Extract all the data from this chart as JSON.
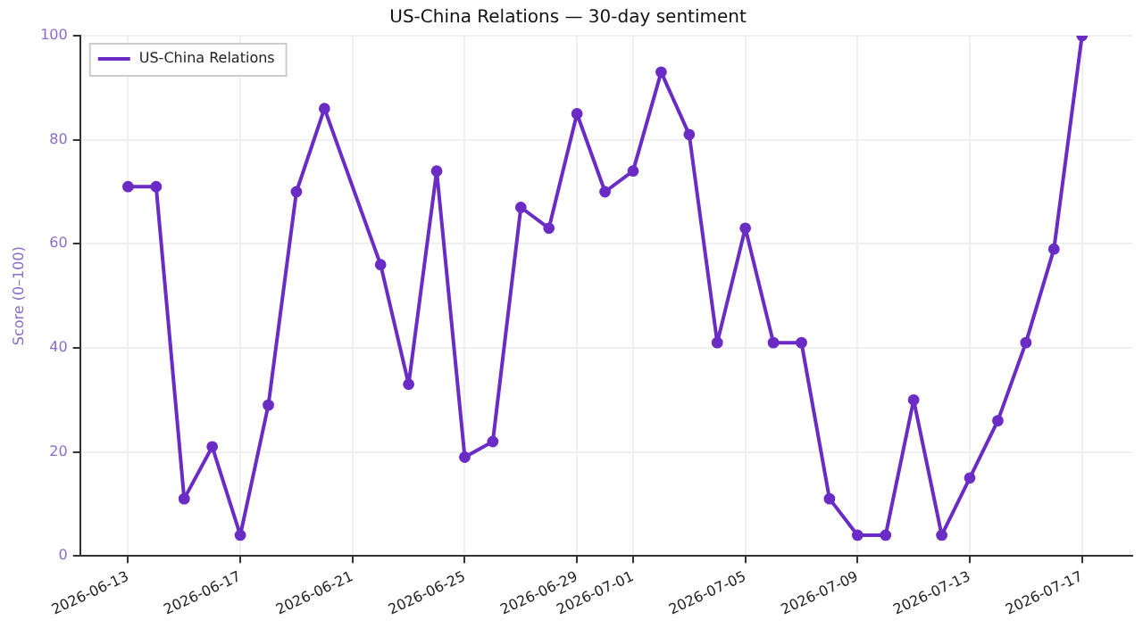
{
  "chart_data": {
    "type": "line",
    "title": "US-China Relations — 30-day sentiment",
    "ylabel": "Score (0–100)",
    "x": [
      "2026-06-13",
      "2026-06-14",
      "2026-06-15",
      "2026-06-16",
      "2026-06-17",
      "2026-06-18",
      "2026-06-19",
      "2026-06-20",
      "2026-06-22",
      "2026-06-23",
      "2026-06-24",
      "2026-06-25",
      "2026-06-26",
      "2026-06-27",
      "2026-06-28",
      "2026-06-29",
      "2026-06-30",
      "2026-07-01",
      "2026-07-02",
      "2026-07-03",
      "2026-07-04",
      "2026-07-05",
      "2026-07-06",
      "2026-07-07",
      "2026-07-08",
      "2026-07-09",
      "2026-07-10",
      "2026-07-11",
      "2026-07-12",
      "2026-07-13",
      "2026-07-14",
      "2026-07-15",
      "2026-07-16",
      "2026-07-17"
    ],
    "series": [
      {
        "name": "US-China Relations",
        "color": "#6a2cc4",
        "values": [
          71,
          71,
          11,
          21,
          4,
          29,
          70,
          86,
          56,
          33,
          74,
          19,
          22,
          67,
          63,
          85,
          70,
          74,
          93,
          81,
          41,
          63,
          41,
          41,
          11,
          4,
          4,
          30,
          4,
          15,
          26,
          41,
          59,
          100
        ]
      }
    ],
    "xlim": [
      "2026-06-11T07:00",
      "2026-07-18T19:00"
    ],
    "xticks": [
      "2026-06-13",
      "2026-06-17",
      "2026-06-21",
      "2026-06-25",
      "2026-06-29",
      "2026-07-01",
      "2026-07-05",
      "2026-07-09",
      "2026-07-13",
      "2026-07-17"
    ],
    "ylim": [
      0,
      100
    ],
    "yticks": [
      0,
      20,
      40,
      60,
      80,
      100
    ],
    "grid": true,
    "legend": "top left",
    "marker": "circle",
    "line_style": "solid"
  }
}
